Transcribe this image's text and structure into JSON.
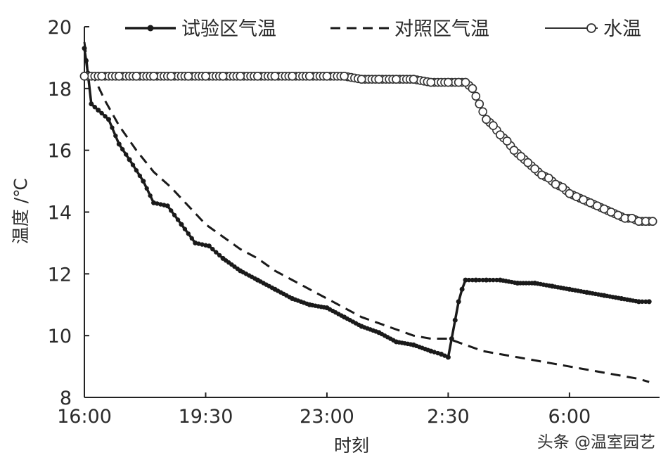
{
  "chart_data": {
    "type": "line",
    "title": "",
    "xlabel": "时刻",
    "ylabel": "温度 /℃",
    "ylim": [
      8,
      20
    ],
    "yticks": [
      8,
      10,
      12,
      14,
      16,
      18,
      20
    ],
    "xlim": [
      16,
      32.6
    ],
    "xticks": [
      {
        "value": 16,
        "label": "16:00"
      },
      {
        "value": 19.5,
        "label": "19:30"
      },
      {
        "value": 23,
        "label": "23:00"
      },
      {
        "value": 26.5,
        "label": "2:30"
      },
      {
        "value": 30,
        "label": "6:00"
      }
    ],
    "grid": false,
    "legend_position": "top",
    "series": [
      {
        "name": "试验区气温",
        "style": "solid-dots",
        "x": [
          16.0,
          16.05,
          16.1,
          16.2,
          16.4,
          16.7,
          17.0,
          17.3,
          17.7,
          18.0,
          18.4,
          18.8,
          19.2,
          19.6,
          20.0,
          20.5,
          21.0,
          21.5,
          22.0,
          22.5,
          23.0,
          23.5,
          24.0,
          24.5,
          25.0,
          25.5,
          26.0,
          26.3,
          26.5,
          26.6,
          26.7,
          26.8,
          26.9,
          27.0,
          27.3,
          27.6,
          28.0,
          28.5,
          29.0,
          29.5,
          30.0,
          30.5,
          31.0,
          31.5,
          32.0,
          32.3
        ],
        "values": [
          19.3,
          18.9,
          18.5,
          17.5,
          17.3,
          17.0,
          16.2,
          15.7,
          15.0,
          14.3,
          14.2,
          13.6,
          13.0,
          12.9,
          12.5,
          12.1,
          11.8,
          11.5,
          11.2,
          11.0,
          10.9,
          10.6,
          10.3,
          10.1,
          9.8,
          9.7,
          9.5,
          9.4,
          9.3,
          9.9,
          10.5,
          11.1,
          11.5,
          11.8,
          11.8,
          11.8,
          11.8,
          11.7,
          11.7,
          11.6,
          11.5,
          11.4,
          11.3,
          11.2,
          11.1,
          11.1
        ]
      },
      {
        "name": "对照区气温",
        "style": "dashed",
        "x": [
          16.0,
          16.05,
          16.1,
          16.3,
          16.6,
          17.0,
          17.5,
          18.0,
          18.5,
          19.0,
          19.5,
          20.0,
          20.5,
          21.0,
          21.5,
          22.0,
          22.5,
          23.0,
          23.5,
          24.0,
          24.5,
          25.0,
          25.5,
          26.0,
          26.5,
          27.0,
          27.5,
          28.0,
          28.5,
          29.0,
          29.5,
          30.0,
          30.5,
          31.0,
          31.5,
          32.0,
          32.3
        ],
        "values": [
          19.5,
          19.1,
          18.5,
          18.3,
          17.6,
          16.8,
          16.0,
          15.3,
          14.8,
          14.2,
          13.6,
          13.2,
          12.8,
          12.5,
          12.1,
          11.8,
          11.5,
          11.2,
          10.9,
          10.6,
          10.4,
          10.2,
          10.0,
          9.9,
          9.9,
          9.7,
          9.5,
          9.4,
          9.3,
          9.2,
          9.1,
          9.0,
          8.9,
          8.8,
          8.7,
          8.6,
          8.5
        ]
      },
      {
        "name": "水温",
        "style": "open-circles",
        "x": [
          16.0,
          16.5,
          17.0,
          17.5,
          18.0,
          18.5,
          19.0,
          19.5,
          20.0,
          20.5,
          21.0,
          21.5,
          22.0,
          22.5,
          23.0,
          23.5,
          24.0,
          24.5,
          25.0,
          25.5,
          26.0,
          26.5,
          26.8,
          27.0,
          27.2,
          27.4,
          27.6,
          27.8,
          28.0,
          28.2,
          28.4,
          28.6,
          28.8,
          29.0,
          29.2,
          29.4,
          29.6,
          29.8,
          30.0,
          30.2,
          30.4,
          30.6,
          30.8,
          31.0,
          31.2,
          31.4,
          31.6,
          31.8,
          32.0,
          32.2,
          32.4
        ],
        "values": [
          18.4,
          18.4,
          18.4,
          18.4,
          18.4,
          18.4,
          18.4,
          18.4,
          18.4,
          18.4,
          18.4,
          18.4,
          18.4,
          18.4,
          18.4,
          18.4,
          18.3,
          18.3,
          18.3,
          18.3,
          18.2,
          18.2,
          18.2,
          18.2,
          18.0,
          17.5,
          17.0,
          16.8,
          16.5,
          16.3,
          16.0,
          15.8,
          15.6,
          15.4,
          15.2,
          15.1,
          14.9,
          14.8,
          14.6,
          14.5,
          14.4,
          14.3,
          14.2,
          14.1,
          14.0,
          13.9,
          13.8,
          13.8,
          13.7,
          13.7,
          13.7
        ]
      }
    ]
  },
  "watermark": "头条 @温室园艺"
}
